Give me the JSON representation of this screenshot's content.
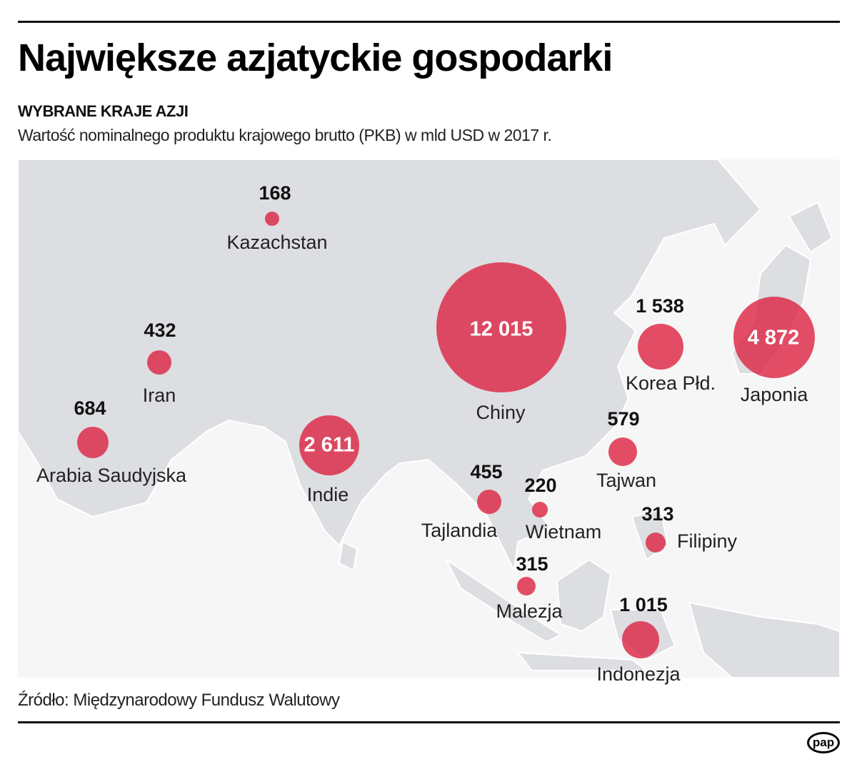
{
  "header": {
    "title": "Największe azjatyckie gospodarki",
    "subtitle": "WYBRANE KRAJE AZJI",
    "description": "Wartość nominalnego produktu krajowego brutto (PKB) w mld USD w 2017 r."
  },
  "footer": {
    "source": "Źródło: Międzynarodowy Fundusz Walutowy",
    "logo": "pap"
  },
  "colors": {
    "bubble": "#dc1e3c",
    "land": "#dcdee1",
    "sea": "#f6f6f6"
  },
  "chart_data": {
    "type": "bubble-map",
    "title": "Największe azjatyckie gospodarki",
    "unit": "mld USD",
    "year": 2017,
    "countries": [
      {
        "name": "Kazachstan",
        "value": 168,
        "label": "168"
      },
      {
        "name": "Iran",
        "value": 432,
        "label": "432"
      },
      {
        "name": "Arabia Saudyjska",
        "value": 684,
        "label": "684"
      },
      {
        "name": "Indie",
        "value": 2611,
        "label": "2 611"
      },
      {
        "name": "Chiny",
        "value": 12015,
        "label": "12 015"
      },
      {
        "name": "Korea Płd.",
        "value": 1538,
        "label": "1 538"
      },
      {
        "name": "Japonia",
        "value": 4872,
        "label": "4 872"
      },
      {
        "name": "Tajwan",
        "value": 579,
        "label": "579"
      },
      {
        "name": "Tajlandia",
        "value": 455,
        "label": "455"
      },
      {
        "name": "Wietnam",
        "value": 220,
        "label": "220"
      },
      {
        "name": "Filipiny",
        "value": 313,
        "label": "313"
      },
      {
        "name": "Malezja",
        "value": 315,
        "label": "315"
      },
      {
        "name": "Indonezja",
        "value": 1015,
        "label": "1 015"
      }
    ]
  }
}
